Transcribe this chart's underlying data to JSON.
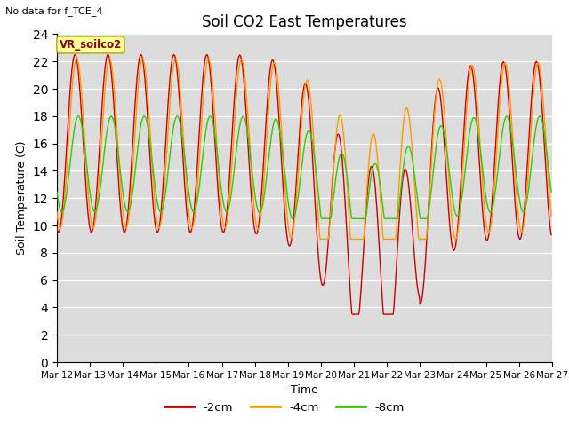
{
  "title": "Soil CO2 East Temperatures",
  "ylabel": "Soil Temperature (C)",
  "xlabel": "Time",
  "note": "No data for f_TCE_4",
  "legend_label": "VR_soilco2",
  "ylim": [
    0,
    24
  ],
  "line_colors": {
    "2cm": "#cc0000",
    "4cm": "#ff9900",
    "8cm": "#33cc00"
  },
  "legend_labels": [
    "-2cm",
    "-4cm",
    "-8cm"
  ],
  "bg_color": "#dcdcdc",
  "fig_bg": "#ffffff",
  "num_days": 15,
  "points_per_day": 48
}
